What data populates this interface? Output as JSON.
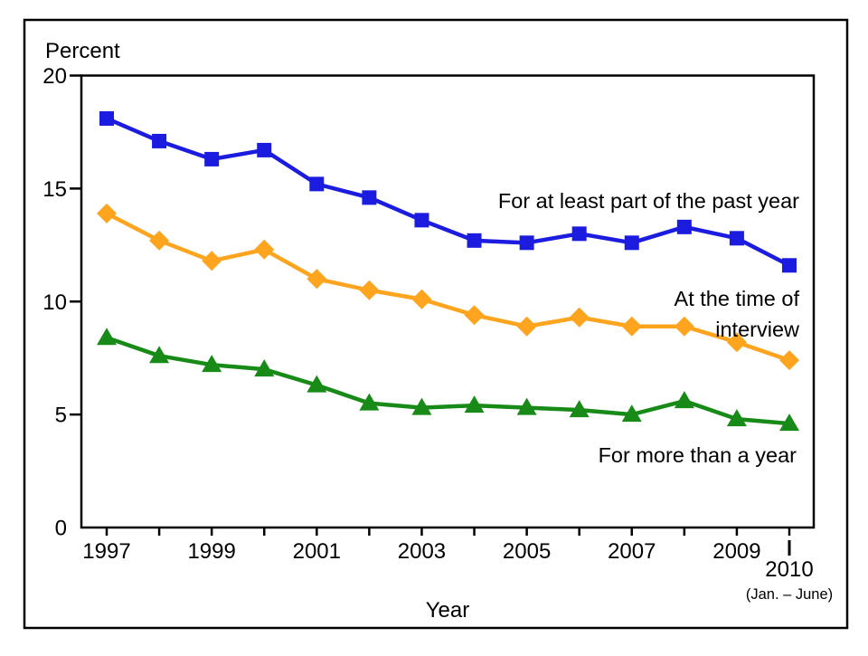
{
  "figure": {
    "background": "#ffffff",
    "frame_color": "#000000"
  },
  "chart_data": {
    "type": "line",
    "title": "",
    "ylabel": "Percent",
    "xlabel": "Year",
    "ylim": [
      0,
      20
    ],
    "yticks": [
      0,
      5,
      10,
      15,
      20
    ],
    "x": [
      1997,
      1998,
      1999,
      2000,
      2001,
      2002,
      2003,
      2004,
      2005,
      2006,
      2007,
      2008,
      2009,
      2010
    ],
    "xticks_labeled": [
      1997,
      1999,
      2001,
      2003,
      2005,
      2007,
      2009
    ],
    "final_xtick": {
      "label": "2010",
      "note": "(Jan. – June)"
    },
    "grid": false,
    "legend": "inline-labels",
    "series": [
      {
        "id": "part-of-past-year",
        "name": "For at least part of the past year",
        "label_lines": [
          "For at least part of the past year"
        ],
        "marker": "square",
        "color": "#1c1ce0",
        "values": [
          18.1,
          17.1,
          16.3,
          16.7,
          15.2,
          14.6,
          13.6,
          12.7,
          12.6,
          13.0,
          12.6,
          13.3,
          12.8,
          11.6
        ]
      },
      {
        "id": "at-time-of-interview",
        "name": "At the time of interview",
        "label_lines": [
          "At the time of",
          "interview"
        ],
        "marker": "diamond",
        "color": "#ffa41f",
        "values": [
          13.9,
          12.7,
          11.8,
          12.3,
          11.0,
          10.5,
          10.1,
          9.4,
          8.9,
          9.3,
          8.9,
          8.9,
          8.2,
          7.4
        ]
      },
      {
        "id": "more-than-a-year",
        "name": "For more than a year",
        "label_lines": [
          "For more than a year"
        ],
        "marker": "triangle",
        "color": "#178a17",
        "values": [
          8.4,
          7.6,
          7.2,
          7.0,
          6.3,
          5.5,
          5.3,
          5.4,
          5.3,
          5.2,
          5.0,
          5.6,
          4.8,
          4.6
        ]
      }
    ]
  }
}
